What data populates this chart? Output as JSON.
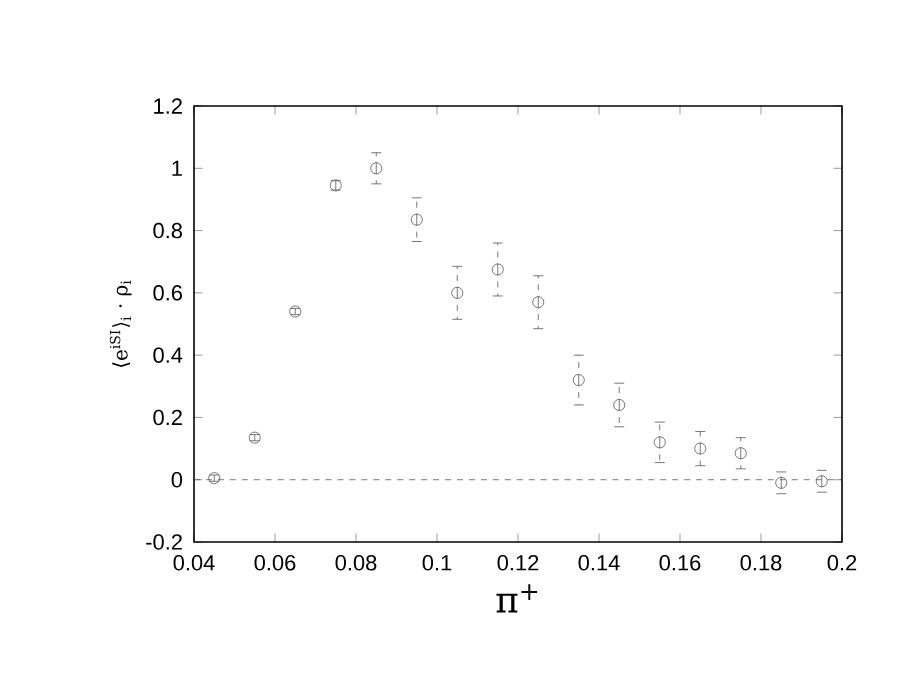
{
  "chart_data": {
    "type": "scatter",
    "xlabel": "π$^{+}$",
    "ylabel": "⟨e$^{iSI}$⟩$_{i}$ · ρ$_{i}$",
    "x": [
      0.045,
      0.055,
      0.065,
      0.075,
      0.085,
      0.095,
      0.105,
      0.115,
      0.125,
      0.135,
      0.145,
      0.155,
      0.165,
      0.175,
      0.185,
      0.195
    ],
    "series": [
      {
        "color": "#555555",
        "values": [
          0.005,
          0.135,
          0.54,
          0.945,
          1.0,
          0.835,
          0.6,
          0.675,
          0.57,
          0.32,
          0.24,
          0.12,
          0.1,
          0.085,
          -0.01,
          -0.005
        ],
        "errors": [
          0.01,
          0.01,
          0.01,
          0.015,
          0.05,
          0.07,
          0.085,
          0.085,
          0.085,
          0.08,
          0.07,
          0.065,
          0.055,
          0.05,
          0.035,
          0.035
        ]
      }
    ],
    "xlim": [
      0.04,
      0.2
    ],
    "xticks": [
      0.04,
      0.06,
      0.08,
      0.1,
      0.12,
      0.14,
      0.16,
      0.18,
      0.2
    ],
    "ylim": [
      -0.2,
      1.2
    ],
    "yticks": [
      -0.2,
      0,
      0.2,
      0.4,
      0.6,
      0.8,
      1,
      1.2
    ],
    "ref_lines": [
      {
        "axis": "y",
        "value": 0,
        "line_style": "dashed",
        "color": "#555555"
      }
    ],
    "marker": "circle",
    "grid": false
  }
}
